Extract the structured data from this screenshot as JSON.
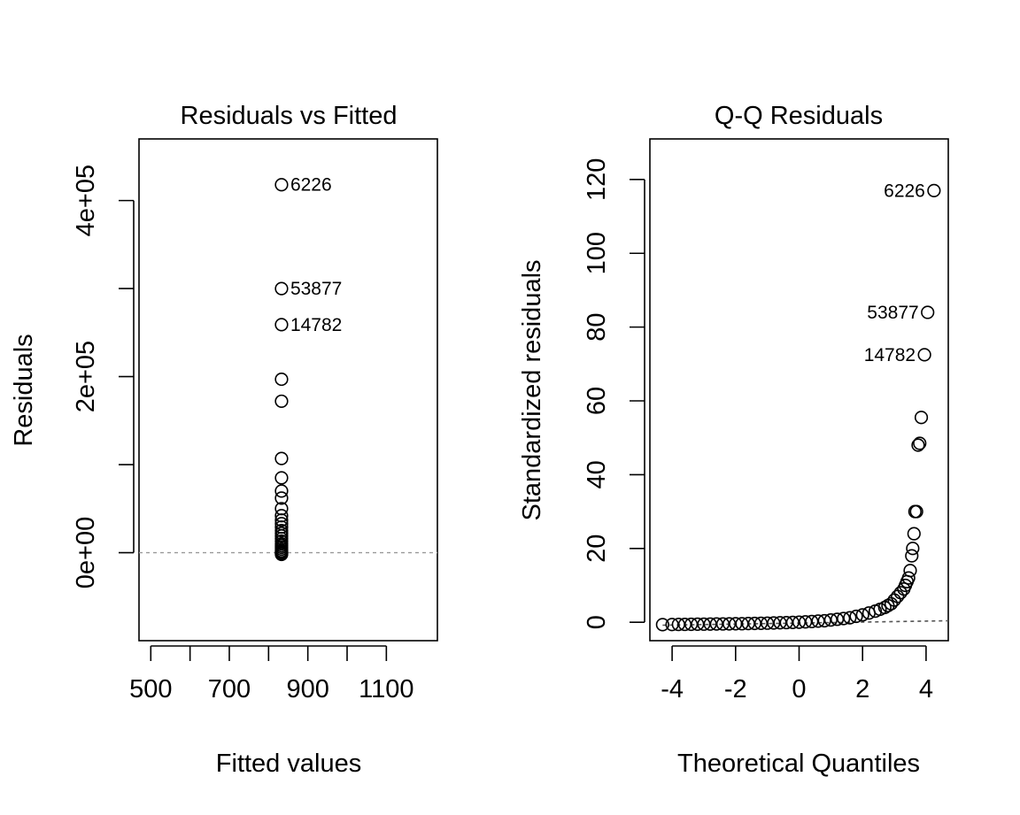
{
  "chart_data": [
    {
      "type": "scatter",
      "title": "Residuals vs Fitted",
      "xlabel": "Fitted values",
      "ylabel": "Residuals",
      "xlim": [
        470,
        1230
      ],
      "ylim": [
        -100000,
        470000
      ],
      "x_ticks": [
        500,
        600,
        700,
        800,
        900,
        1000,
        1100
      ],
      "x_tick_labels": [
        "500",
        "",
        "700",
        "",
        "900",
        "",
        "1100"
      ],
      "y_ticks": [
        0,
        100000,
        200000,
        300000,
        400000
      ],
      "y_tick_labels": [
        "0e+00",
        "",
        "2e+05",
        "",
        "4e+05"
      ],
      "grid": false,
      "reference_line": {
        "y": 0,
        "style": "dashed",
        "color": "#999999"
      },
      "points": [
        {
          "x": 833,
          "y": 418000,
          "label": "6226"
        },
        {
          "x": 833,
          "y": 300000,
          "label": "53877"
        },
        {
          "x": 833,
          "y": 259000,
          "label": "14782"
        },
        {
          "x": 833,
          "y": 197000
        },
        {
          "x": 833,
          "y": 172000
        },
        {
          "x": 833,
          "y": 107000
        },
        {
          "x": 833,
          "y": 85000
        },
        {
          "x": 833,
          "y": 70000
        },
        {
          "x": 833,
          "y": 62000
        },
        {
          "x": 833,
          "y": 50000
        },
        {
          "x": 833,
          "y": 42000
        },
        {
          "x": 833,
          "y": 37000
        },
        {
          "x": 833,
          "y": 33000
        },
        {
          "x": 833,
          "y": 29000
        },
        {
          "x": 833,
          "y": 25000
        },
        {
          "x": 833,
          "y": 22000
        },
        {
          "x": 833,
          "y": 19000
        },
        {
          "x": 833,
          "y": 16000
        },
        {
          "x": 833,
          "y": 13000
        },
        {
          "x": 833,
          "y": 10000
        },
        {
          "x": 833,
          "y": 8000
        },
        {
          "x": 833,
          "y": 6000
        },
        {
          "x": 833,
          "y": 4000
        },
        {
          "x": 833,
          "y": 2000
        },
        {
          "x": 833,
          "y": 1000
        },
        {
          "x": 833,
          "y": 0
        },
        {
          "x": 833,
          "y": -1000
        },
        {
          "x": 833,
          "y": -2000
        }
      ]
    },
    {
      "type": "scatter",
      "title": "Q-Q Residuals",
      "xlabel": "Theoretical Quantiles",
      "ylabel": "Standardized residuals",
      "xlim": [
        -4.7,
        4.7
      ],
      "ylim": [
        -5,
        131
      ],
      "x_ticks": [
        -4,
        -2,
        0,
        2,
        4
      ],
      "x_tick_labels": [
        "-4",
        "-2",
        "0",
        "2",
        "4"
      ],
      "y_ticks": [
        0,
        20,
        40,
        60,
        80,
        100,
        120
      ],
      "y_tick_labels": [
        "0",
        "20",
        "40",
        "60",
        "80",
        "100",
        "120"
      ],
      "grid": false,
      "reference_line": {
        "points": [
          [
            -4.3,
            -0.8
          ],
          [
            4.7,
            0.4
          ]
        ],
        "style": "dashed",
        "color": "#555555"
      },
      "points": [
        {
          "x": 4.25,
          "y": 117,
          "label": "6226"
        },
        {
          "x": 4.05,
          "y": 84,
          "label": "53877"
        },
        {
          "x": 3.95,
          "y": 72.5,
          "label": "14782"
        },
        {
          "x": 3.85,
          "y": 55.5
        },
        {
          "x": 3.8,
          "y": 48.5
        },
        {
          "x": 3.75,
          "y": 48
        },
        {
          "x": 3.7,
          "y": 30
        },
        {
          "x": 3.65,
          "y": 30
        },
        {
          "x": 3.62,
          "y": 24
        },
        {
          "x": 3.58,
          "y": 20
        },
        {
          "x": 3.55,
          "y": 18
        },
        {
          "x": 3.5,
          "y": 14
        },
        {
          "x": 3.45,
          "y": 12
        },
        {
          "x": 3.4,
          "y": 11
        },
        {
          "x": 3.35,
          "y": 10
        },
        {
          "x": 3.3,
          "y": 9
        },
        {
          "x": 3.2,
          "y": 8
        },
        {
          "x": 3.1,
          "y": 7
        },
        {
          "x": 3.0,
          "y": 6
        },
        {
          "x": 2.9,
          "y": 5
        },
        {
          "x": 2.8,
          "y": 4.5
        },
        {
          "x": 2.7,
          "y": 4
        },
        {
          "x": 2.55,
          "y": 3.5
        },
        {
          "x": 2.4,
          "y": 3
        },
        {
          "x": 2.2,
          "y": 2.5
        },
        {
          "x": 2.0,
          "y": 2
        },
        {
          "x": 1.8,
          "y": 1.6
        },
        {
          "x": 1.6,
          "y": 1.2
        },
        {
          "x": 1.4,
          "y": 1
        },
        {
          "x": 1.2,
          "y": 0.8
        },
        {
          "x": 1.0,
          "y": 0.6
        },
        {
          "x": 0.8,
          "y": 0.4
        },
        {
          "x": 0.6,
          "y": 0.3
        },
        {
          "x": 0.4,
          "y": 0.2
        },
        {
          "x": 0.2,
          "y": 0.1
        },
        {
          "x": 0.0,
          "y": 0
        },
        {
          "x": -0.2,
          "y": -0.05
        },
        {
          "x": -0.4,
          "y": -0.1
        },
        {
          "x": -0.6,
          "y": -0.15
        },
        {
          "x": -0.8,
          "y": -0.2
        },
        {
          "x": -1.0,
          "y": -0.25
        },
        {
          "x": -1.2,
          "y": -0.3
        },
        {
          "x": -1.4,
          "y": -0.33
        },
        {
          "x": -1.6,
          "y": -0.36
        },
        {
          "x": -1.8,
          "y": -0.4
        },
        {
          "x": -2.0,
          "y": -0.42
        },
        {
          "x": -2.2,
          "y": -0.44
        },
        {
          "x": -2.4,
          "y": -0.46
        },
        {
          "x": -2.6,
          "y": -0.48
        },
        {
          "x": -2.8,
          "y": -0.5
        },
        {
          "x": -3.0,
          "y": -0.52
        },
        {
          "x": -3.2,
          "y": -0.54
        },
        {
          "x": -3.4,
          "y": -0.56
        },
        {
          "x": -3.6,
          "y": -0.58
        },
        {
          "x": -3.8,
          "y": -0.6
        },
        {
          "x": -4.0,
          "y": -0.62
        },
        {
          "x": -4.3,
          "y": -0.65
        }
      ]
    }
  ]
}
